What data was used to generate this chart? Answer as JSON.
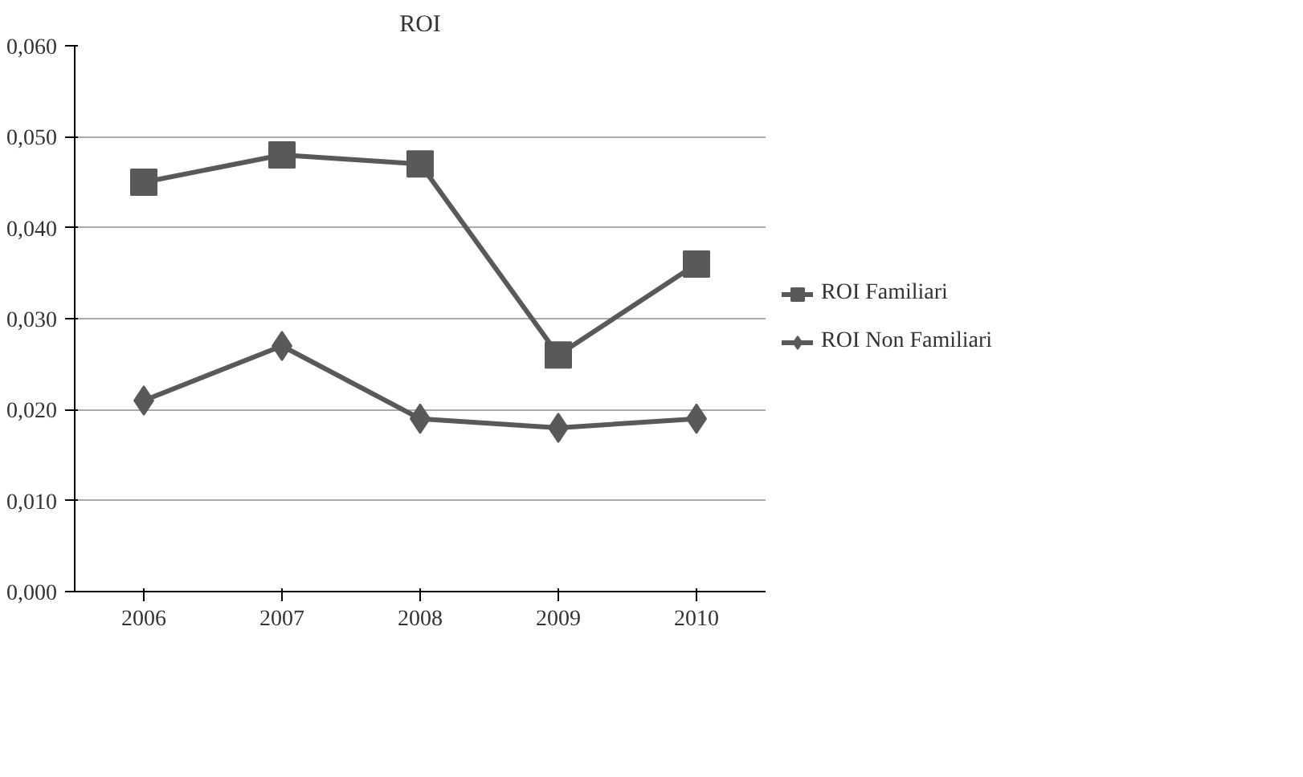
{
  "chart_data": {
    "type": "line",
    "title": "ROI",
    "categories": [
      "2006",
      "2007",
      "2008",
      "2009",
      "2010"
    ],
    "series": [
      {
        "name": "ROI Familiari",
        "color": "#595959",
        "marker": "square",
        "values": [
          0.045,
          0.048,
          0.047,
          0.026,
          0.036
        ]
      },
      {
        "name": "ROI Non Familiari",
        "color": "#595959",
        "marker": "diamond",
        "values": [
          0.021,
          0.027,
          0.019,
          0.018,
          0.019
        ]
      }
    ],
    "ylim": [
      0,
      0.06
    ],
    "yticks": [
      {
        "value": 0,
        "label": "0,000"
      },
      {
        "value": 0.01,
        "label": "0,010"
      },
      {
        "value": 0.02,
        "label": "0,020"
      },
      {
        "value": 0.03,
        "label": "0,030"
      },
      {
        "value": 0.04,
        "label": "0,040"
      },
      {
        "value": 0.05,
        "label": "0,050"
      },
      {
        "value": 0.06,
        "label": "0,060"
      }
    ],
    "grid": "y",
    "legend": "right"
  }
}
